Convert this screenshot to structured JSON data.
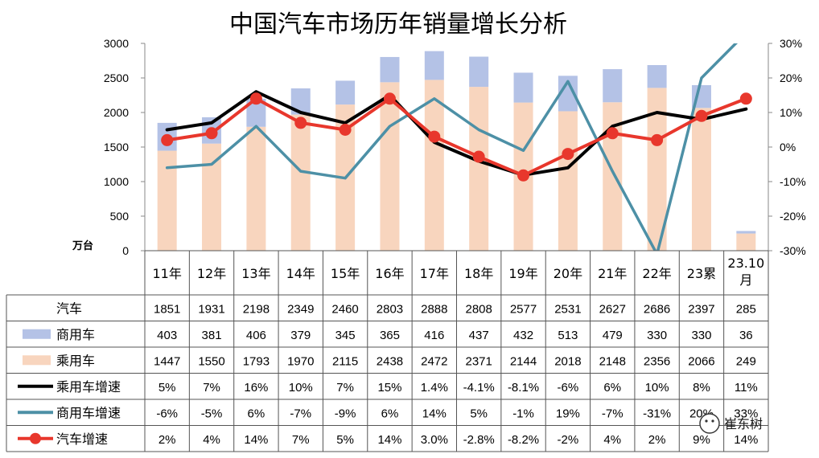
{
  "chart_data": {
    "type": "bar",
    "title": "中国汽车市场历年销量增长分析",
    "y_unit_label": "万台",
    "categories": [
      "11年",
      "12年",
      "13年",
      "14年",
      "15年",
      "16年",
      "17年",
      "18年",
      "19年",
      "20年",
      "21年",
      "22年",
      "23累",
      "23.10 月"
    ],
    "ylim": [
      0,
      3000
    ],
    "y_ticks": [
      "0",
      "500",
      "1000",
      "1500",
      "2000",
      "2500",
      "3000"
    ],
    "y2lim": [
      -0.3,
      0.3
    ],
    "y2_ticks": [
      "-30%",
      "-20%",
      "-10%",
      "0%",
      "10%",
      "20%",
      "30%"
    ],
    "grid": false,
    "series": [
      {
        "name": "汽车",
        "kind": "total",
        "values": [
          1851,
          1931,
          2198,
          2349,
          2460,
          2803,
          2888,
          2808,
          2577,
          2531,
          2627,
          2686,
          2397,
          285
        ],
        "labels": [
          "1851",
          "1931",
          "2198",
          "2349",
          "2460",
          "2803",
          "2888",
          "2808",
          "2577",
          "2531",
          "2627",
          "2686",
          "2397",
          "285"
        ]
      },
      {
        "name": "商用车",
        "kind": "bar",
        "color": "#b4c2e6",
        "values": [
          403,
          381,
          406,
          379,
          345,
          365,
          416,
          437,
          432,
          513,
          479,
          330,
          330,
          36
        ],
        "labels": [
          "403",
          "381",
          "406",
          "379",
          "345",
          "365",
          "416",
          "437",
          "432",
          "513",
          "479",
          "330",
          "330",
          "36"
        ]
      },
      {
        "name": "乘用车",
        "kind": "bar",
        "color": "#f8d5be",
        "values": [
          1447,
          1550,
          1793,
          1970,
          2115,
          2438,
          2472,
          2371,
          2144,
          2018,
          2148,
          2356,
          2066,
          249
        ],
        "labels": [
          "1447",
          "1550",
          "1793",
          "1970",
          "2115",
          "2438",
          "2472",
          "2371",
          "2144",
          "2018",
          "2148",
          "2356",
          "2066",
          "249"
        ]
      },
      {
        "name": "乘用车增速",
        "kind": "line",
        "color": "#000000",
        "values": [
          0.05,
          0.07,
          0.16,
          0.1,
          0.07,
          0.15,
          0.014,
          -0.041,
          -0.081,
          -0.06,
          0.06,
          0.1,
          0.08,
          0.11
        ],
        "labels": [
          "5%",
          "7%",
          "16%",
          "10%",
          "7%",
          "15%",
          "1.4%",
          "-4.1%",
          "-8.1%",
          "-6%",
          "6%",
          "10%",
          "8%",
          "11%"
        ]
      },
      {
        "name": "商用车增速",
        "kind": "line",
        "color": "#4d90a6",
        "values": [
          -0.06,
          -0.05,
          0.06,
          -0.07,
          -0.09,
          0.06,
          0.14,
          0.05,
          -0.01,
          0.19,
          -0.07,
          -0.31,
          0.2,
          0.33
        ],
        "labels": [
          "-6%",
          "-5%",
          "6%",
          "-7%",
          "-9%",
          "6%",
          "14%",
          "5%",
          "-1%",
          "19%",
          "-7%",
          "-31%",
          "20%",
          "33%"
        ]
      },
      {
        "name": "汽车增速",
        "kind": "line-marker",
        "color": "#e8372c",
        "values": [
          0.02,
          0.04,
          0.14,
          0.07,
          0.05,
          0.14,
          0.03,
          -0.028,
          -0.082,
          -0.02,
          0.04,
          0.02,
          0.09,
          0.14
        ],
        "labels": [
          "2%",
          "4%",
          "14%",
          "7%",
          "5%",
          "14%",
          "3.0%",
          "-2.8%",
          "-8.2%",
          "-2%",
          "4%",
          "2%",
          "9%",
          "14%"
        ]
      }
    ]
  },
  "watermark": "崔东树"
}
